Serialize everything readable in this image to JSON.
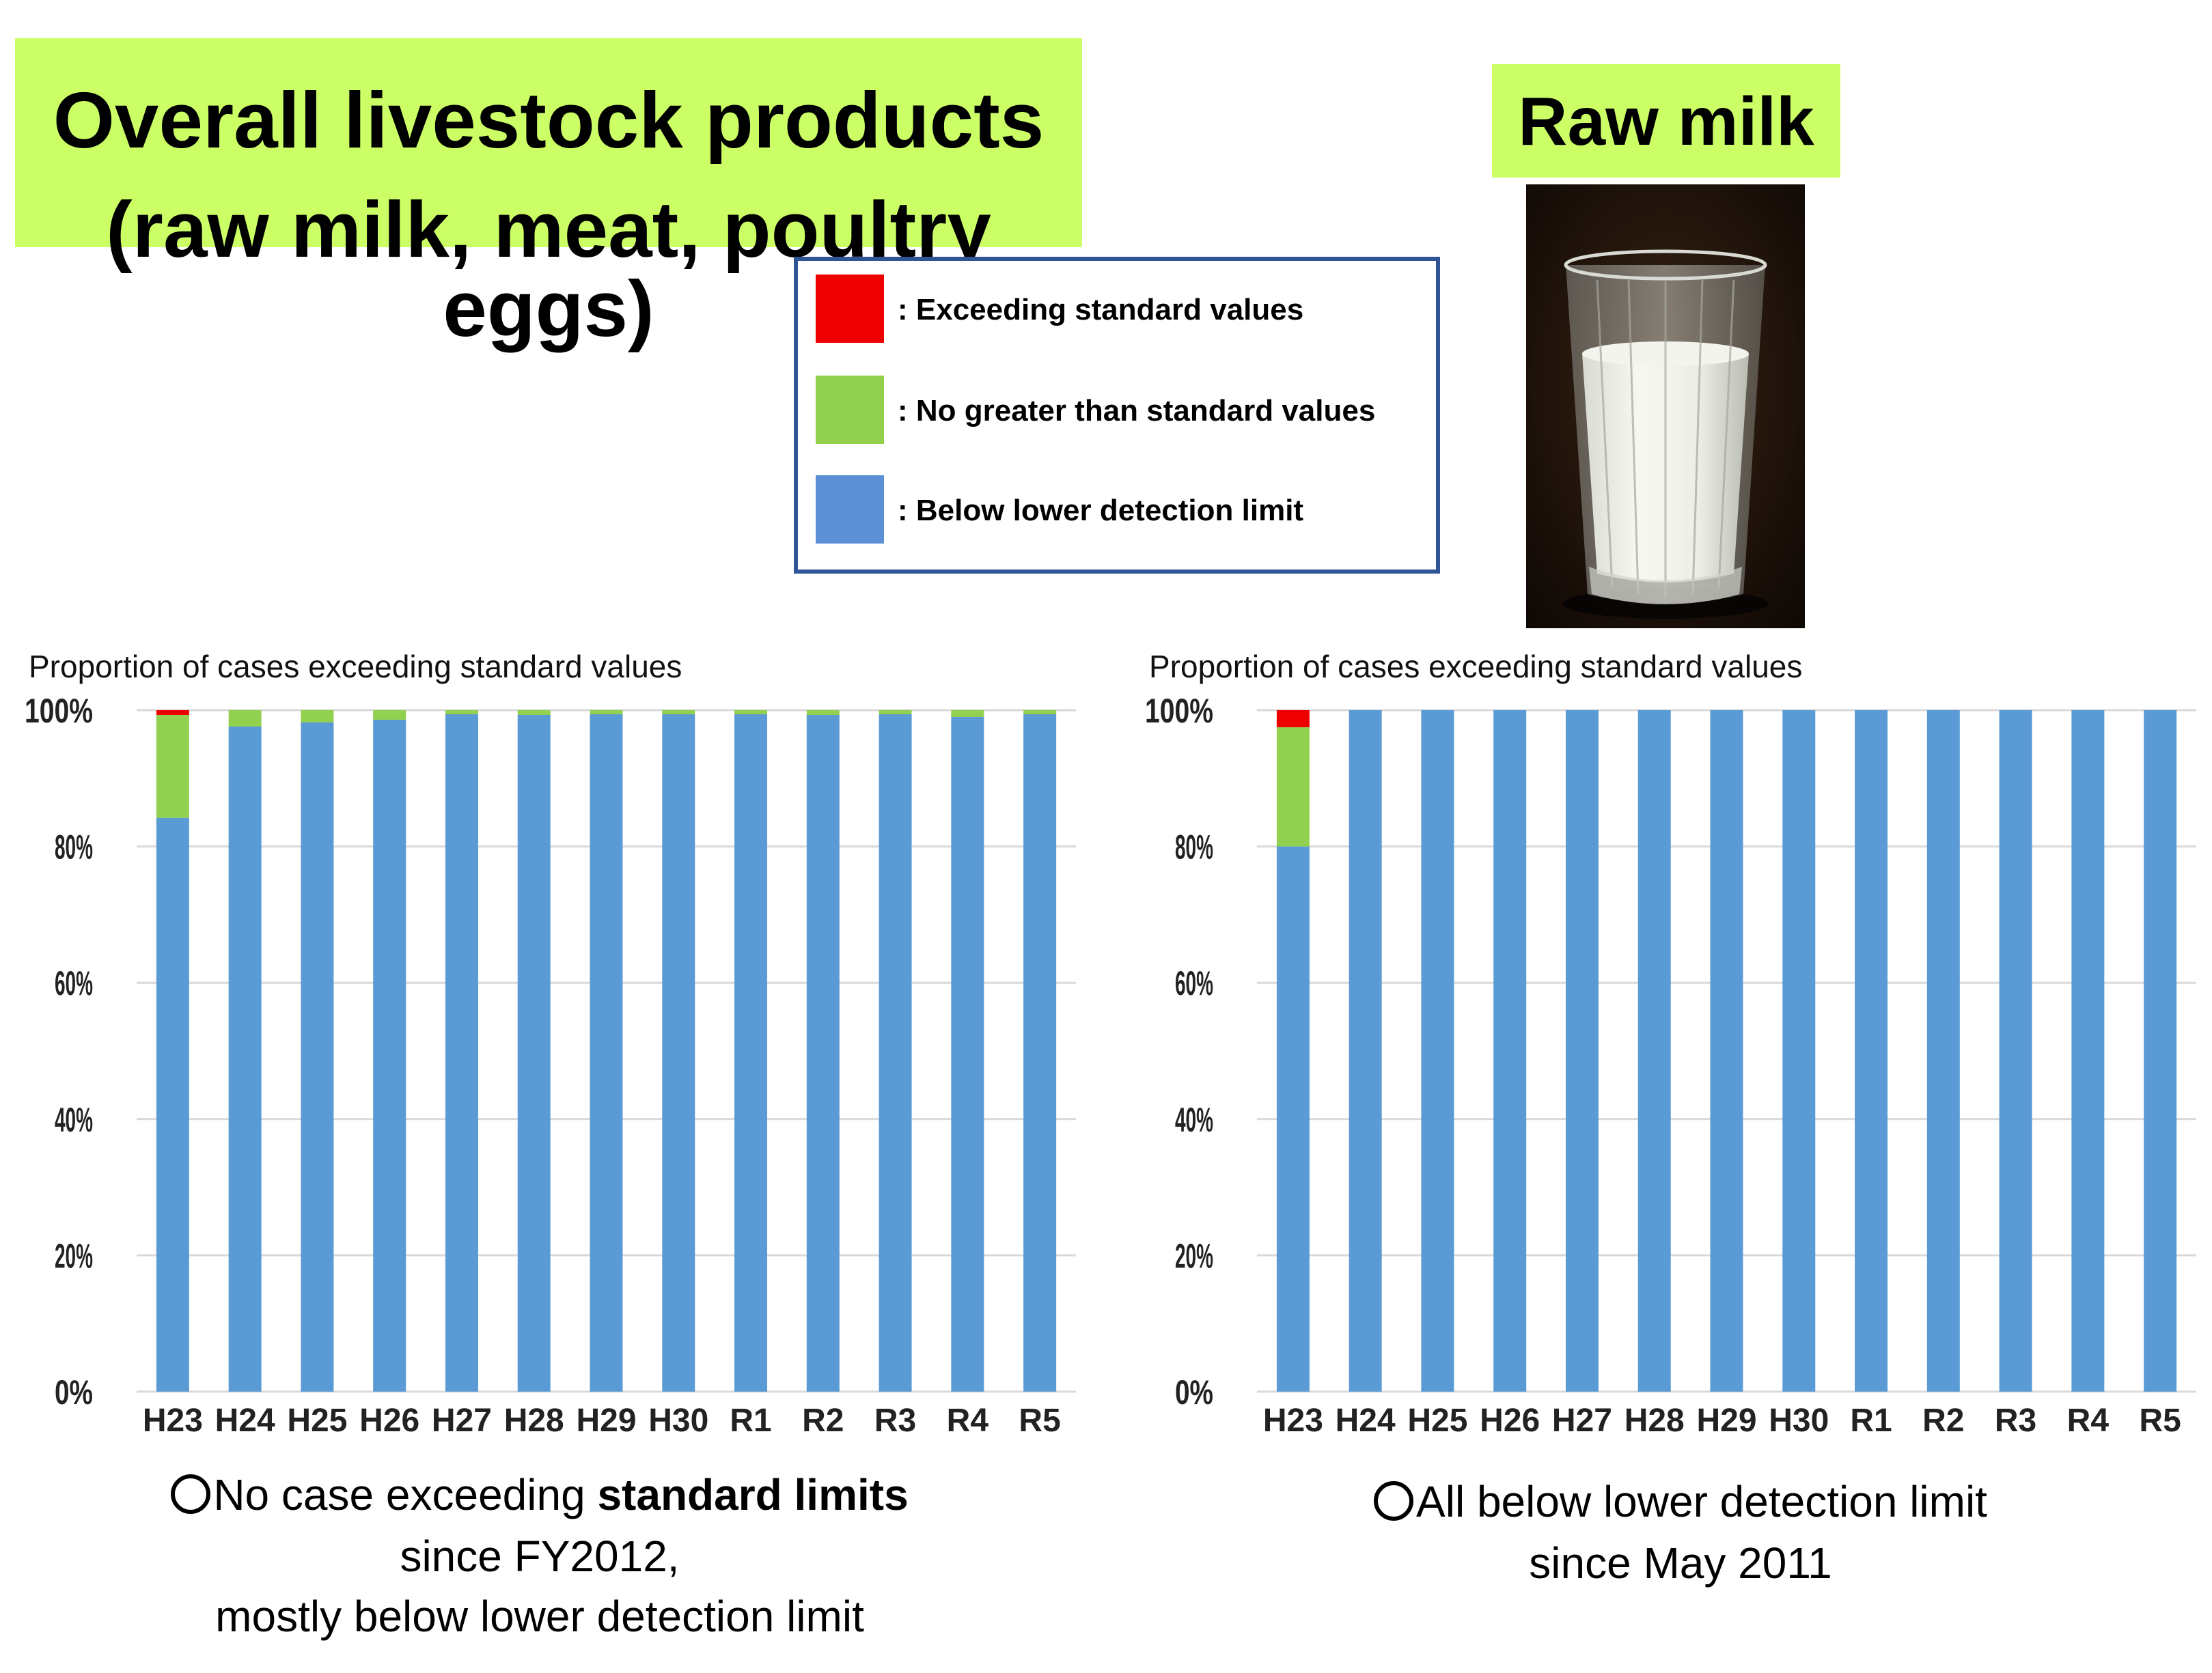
{
  "header": {
    "title_line1": "Overall livestock products",
    "title_line2": "(raw milk, meat, poultry eggs)",
    "raw_milk_label": "Raw milk"
  },
  "legend": {
    "items": [
      {
        "label": ": Exceeding standard values",
        "color": "#ee0000"
      },
      {
        "label": ": No greater than standard values",
        "color": "#92d050"
      },
      {
        "label": ": Below lower detection limit",
        "color": "#5b8fd6"
      }
    ]
  },
  "colors": {
    "exceeding": "#ee0000",
    "no_greater": "#92d050",
    "below": "#5b9bd5",
    "title_bg": "#ccff66",
    "legend_border": "#2f5597"
  },
  "chart_data": [
    {
      "type": "bar",
      "stacked": true,
      "title": "Proportion of cases exceeding standard values",
      "xlabel": "",
      "ylabel": "",
      "ylim": [
        0,
        100
      ],
      "yticks": [
        "0%",
        "20%",
        "40%",
        "60%",
        "80%",
        "100%"
      ],
      "categories": [
        "H23",
        "H24",
        "H25",
        "H26",
        "H27",
        "H28",
        "H29",
        "H30",
        "R1",
        "R2",
        "R3",
        "R4",
        "R5"
      ],
      "series": [
        {
          "name": "Below lower detection limit",
          "values": [
            84.2,
            97.6,
            98.2,
            98.6,
            99.4,
            99.3,
            99.4,
            99.4,
            99.4,
            99.3,
            99.4,
            99.0,
            99.4
          ]
        },
        {
          "name": "No greater than standard values",
          "values": [
            15.1,
            2.4,
            1.8,
            1.4,
            0.6,
            0.7,
            0.6,
            0.6,
            0.6,
            0.7,
            0.6,
            1.0,
            0.6
          ]
        },
        {
          "name": "Exceeding standard values",
          "values": [
            0.7,
            0,
            0,
            0,
            0,
            0,
            0,
            0,
            0,
            0,
            0,
            0,
            0
          ]
        }
      ],
      "caption": {
        "prefix": "No case exceeding ",
        "bold": "standard limits",
        "line2": "since FY2012,",
        "line3": "mostly below lower detection limit"
      }
    },
    {
      "type": "bar",
      "stacked": true,
      "title": "Proportion of cases exceeding standard values",
      "xlabel": "",
      "ylabel": "",
      "ylim": [
        0,
        100
      ],
      "yticks": [
        "0%",
        "20%",
        "40%",
        "60%",
        "80%",
        "100%"
      ],
      "categories": [
        "H23",
        "H24",
        "H25",
        "H26",
        "H27",
        "H28",
        "H29",
        "H30",
        "R1",
        "R2",
        "R3",
        "R4",
        "R5"
      ],
      "series": [
        {
          "name": "Below lower detection limit",
          "values": [
            80.0,
            100,
            100,
            100,
            100,
            100,
            100,
            100,
            100,
            100,
            100,
            100,
            100
          ]
        },
        {
          "name": "No greater than standard values",
          "values": [
            17.5,
            0,
            0,
            0,
            0,
            0,
            0,
            0,
            0,
            0,
            0,
            0,
            0
          ]
        },
        {
          "name": "Exceeding standard values",
          "values": [
            2.5,
            0,
            0,
            0,
            0,
            0,
            0,
            0,
            0,
            0,
            0,
            0,
            0
          ]
        }
      ],
      "caption": {
        "line1": "All below lower detection limit",
        "line2": "since May 2011"
      }
    }
  ]
}
